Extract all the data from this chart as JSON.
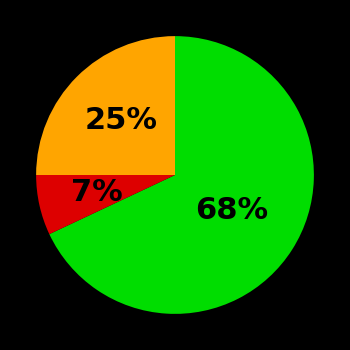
{
  "slices": [
    68,
    7,
    25
  ],
  "labels": [
    "68%",
    "7%",
    "25%"
  ],
  "colors": [
    "#00dd00",
    "#dd0000",
    "#ffa500"
  ],
  "background_color": "#000000",
  "label_fontsize": 22,
  "label_fontweight": "bold",
  "startangle": 90,
  "figsize": [
    3.5,
    3.5
  ],
  "dpi": 100,
  "label_radii": [
    0.48,
    0.58,
    0.55
  ]
}
